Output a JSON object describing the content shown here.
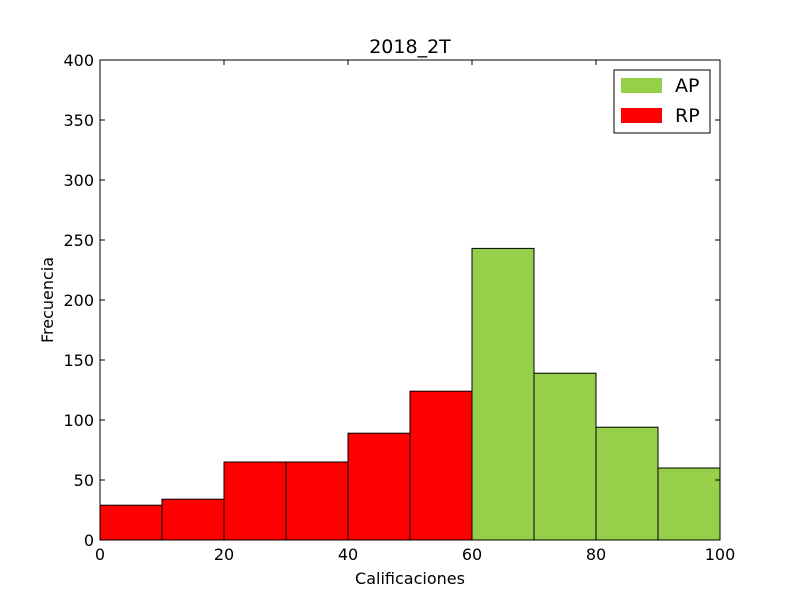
{
  "chart_data": {
    "type": "bar",
    "title": "2018_2T",
    "xlabel": "Calificaciones",
    "ylabel": "Frecuencia",
    "xlim": [
      0,
      100
    ],
    "ylim": [
      0,
      400
    ],
    "xticks": [
      0,
      20,
      40,
      60,
      80,
      100
    ],
    "yticks": [
      0,
      50,
      100,
      150,
      200,
      250,
      300,
      350,
      400
    ],
    "grid": false,
    "legend_position": "top-right",
    "series": [
      {
        "name": "AP",
        "color": "#96d04a",
        "bins": [
          {
            "start": 60,
            "end": 70,
            "value": 243
          },
          {
            "start": 70,
            "end": 80,
            "value": 139
          },
          {
            "start": 80,
            "end": 90,
            "value": 94
          },
          {
            "start": 90,
            "end": 100,
            "value": 60
          }
        ]
      },
      {
        "name": "RP",
        "color": "#ff0000",
        "bins": [
          {
            "start": 0,
            "end": 10,
            "value": 29
          },
          {
            "start": 10,
            "end": 20,
            "value": 34
          },
          {
            "start": 20,
            "end": 30,
            "value": 65
          },
          {
            "start": 30,
            "end": 40,
            "value": 65
          },
          {
            "start": 40,
            "end": 50,
            "value": 89
          },
          {
            "start": 50,
            "end": 60,
            "value": 124
          }
        ]
      }
    ]
  }
}
